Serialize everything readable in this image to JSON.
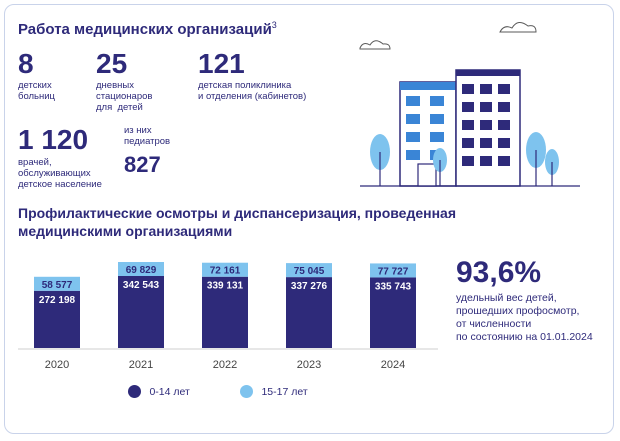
{
  "colors": {
    "primary": "#2e2a7a",
    "light": "#7ec3ee",
    "accent_blue": "#3a85d6"
  },
  "section1": {
    "title": "Работа медицинских организаций",
    "title_note": "3",
    "stats": [
      {
        "value": "8",
        "label_lines": [
          "детских",
          "больниц"
        ]
      },
      {
        "value": "25",
        "label_lines": [
          "дневных",
          "стационаров",
          "для  детей"
        ]
      },
      {
        "value": "121",
        "label_lines": [
          "детская поликлиника",
          "и отделения (кабинетов)"
        ]
      },
      {
        "value": "1 120",
        "label_lines": [
          "врачей,",
          "обслуживающих",
          "детское население"
        ]
      }
    ],
    "pediatricians": {
      "label_lines": [
        "из них",
        "педиатров"
      ],
      "value": "827"
    }
  },
  "section2": {
    "title_lines": [
      "Профилактические осмотры и диспансеризация, проведенная",
      "медицинскими организациями"
    ]
  },
  "chart_data": {
    "type": "bar",
    "stacked": true,
    "categories": [
      "2020",
      "2021",
      "2022",
      "2023",
      "2024"
    ],
    "series": [
      {
        "name": "0-14 лет",
        "values": [
          272198,
          342543,
          339131,
          337276,
          335743
        ],
        "labels": [
          "272 198",
          "342 543",
          "339 131",
          "337 276",
          "335 743"
        ],
        "color": "#2e2a7a"
      },
      {
        "name": "15-17 лет",
        "values": [
          58577,
          69829,
          72161,
          75045,
          77727
        ],
        "labels": [
          "58 577",
          "69 829",
          "72 161",
          "75 045",
          "77 727"
        ],
        "color": "#7ec3ee"
      }
    ],
    "legend_position": "bottom"
  },
  "highlight": {
    "value": "93,6%",
    "desc_lines": [
      "удельный вес детей,",
      "прошедших профосмотр,",
      "от численности",
      "по состоянию на 01.01.2024"
    ]
  }
}
